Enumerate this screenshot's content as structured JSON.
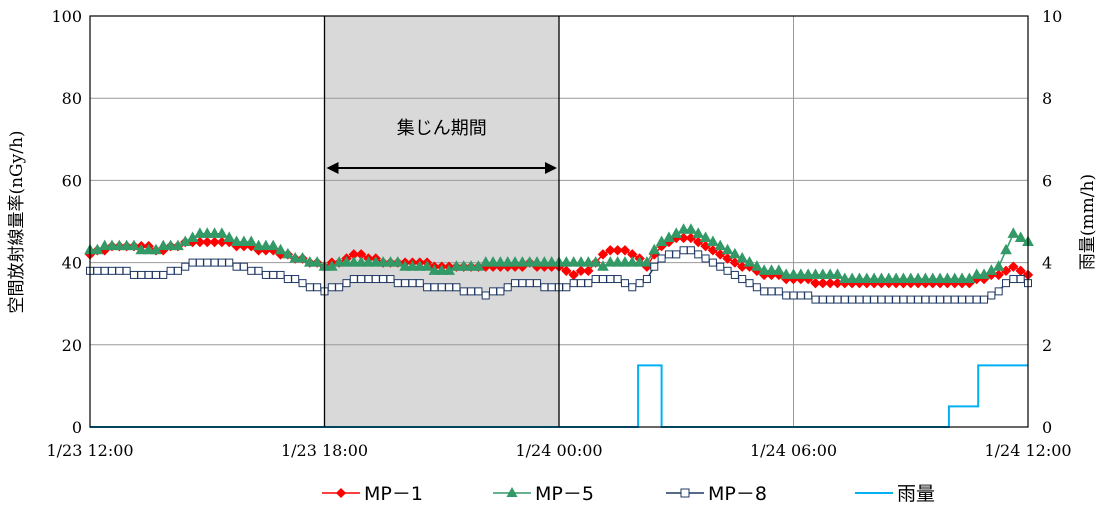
{
  "chart_data": {
    "type": "line",
    "ylabel_left": "空間放射線量率(nGy/h)",
    "ylabel_right": "雨量(mm/h)",
    "ylim_left": [
      0,
      100
    ],
    "ylim_right": [
      0,
      10
    ],
    "y_ticks_left": [
      "0",
      "20",
      "40",
      "60",
      "80",
      "100"
    ],
    "y_ticks_right": [
      "0",
      "2",
      "4",
      "6",
      "8",
      "10"
    ],
    "xlim_hours": [
      0,
      24
    ],
    "x_ticks": [
      {
        "h": 0,
        "date": "1/23",
        "time": "12:00"
      },
      {
        "h": 8,
        "date": "1/23",
        "time": "18:00"
      },
      {
        "h": 16,
        "date": "1/24",
        "time": "00:00"
      },
      {
        "h": 24,
        "date": "1/24",
        "time": "06:00"
      },
      {
        "h": 32,
        "date": "1/24",
        "time": "12:00"
      }
    ],
    "grid": true,
    "legend_position": "bottom",
    "shaded_period": {
      "label": "集じん期間",
      "start_h": 8,
      "end_h": 16,
      "color": "#d9d9d9"
    },
    "series": [
      {
        "name": "MP－1",
        "color": "#ff0000",
        "marker": "diamond",
        "axis": "left",
        "keypoints": [
          [
            0,
            42
          ],
          [
            1,
            44
          ],
          [
            2,
            43.5
          ],
          [
            2.5,
            43
          ],
          [
            3,
            44
          ],
          [
            3.5,
            45
          ],
          [
            4,
            45
          ],
          [
            4.5,
            45
          ],
          [
            5,
            44
          ],
          [
            6,
            43
          ],
          [
            7,
            41
          ],
          [
            7.5,
            40
          ],
          [
            8,
            39
          ],
          [
            8.5,
            40
          ],
          [
            9,
            42
          ],
          [
            10,
            40
          ],
          [
            11,
            40
          ],
          [
            12,
            39
          ],
          [
            13,
            39
          ],
          [
            14,
            39
          ],
          [
            15,
            39.5
          ],
          [
            16,
            39
          ],
          [
            16.5,
            37
          ],
          [
            17,
            38
          ],
          [
            17.5,
            42
          ],
          [
            18,
            43
          ],
          [
            18.5,
            42
          ],
          [
            19,
            39
          ],
          [
            19.5,
            44
          ],
          [
            20,
            46
          ],
          [
            20.5,
            46
          ],
          [
            21,
            44
          ],
          [
            22,
            40
          ],
          [
            23,
            37
          ],
          [
            24,
            36
          ],
          [
            25,
            35
          ],
          [
            26,
            35
          ],
          [
            27,
            35
          ],
          [
            28,
            35
          ],
          [
            29,
            35
          ],
          [
            30,
            35
          ],
          [
            31,
            37
          ],
          [
            31.5,
            39
          ],
          [
            32,
            37
          ]
        ]
      },
      {
        "name": "MP－5",
        "color": "#339966",
        "marker": "triangle",
        "axis": "left",
        "keypoints": [
          [
            0,
            43
          ],
          [
            1,
            44
          ],
          [
            2,
            43
          ],
          [
            3,
            44
          ],
          [
            3.5,
            46
          ],
          [
            4,
            47
          ],
          [
            4.5,
            47
          ],
          [
            5,
            45
          ],
          [
            6,
            44
          ],
          [
            6.5,
            43
          ],
          [
            7,
            41
          ],
          [
            7.5,
            40
          ],
          [
            8,
            39
          ],
          [
            9,
            40
          ],
          [
            10,
            40
          ],
          [
            11,
            39
          ],
          [
            12,
            38
          ],
          [
            13,
            39
          ],
          [
            14,
            40
          ],
          [
            15,
            40
          ],
          [
            16,
            40
          ],
          [
            17,
            40
          ],
          [
            17.5,
            39
          ],
          [
            18,
            40
          ],
          [
            18.5,
            40
          ],
          [
            19,
            40
          ],
          [
            19.5,
            45
          ],
          [
            20,
            47
          ],
          [
            20.5,
            48
          ],
          [
            21,
            46
          ],
          [
            22,
            42
          ],
          [
            23,
            38
          ],
          [
            24,
            37
          ],
          [
            25,
            37
          ],
          [
            26,
            36
          ],
          [
            27,
            36
          ],
          [
            28,
            36
          ],
          [
            29,
            36
          ],
          [
            30,
            36
          ],
          [
            30.5,
            37
          ],
          [
            31,
            39
          ],
          [
            31.5,
            47
          ],
          [
            32,
            45
          ]
        ]
      },
      {
        "name": "MP－8",
        "color": "#1f3864",
        "marker": "square",
        "axis": "left",
        "keypoints": [
          [
            0,
            38
          ],
          [
            1,
            38
          ],
          [
            1.5,
            37
          ],
          [
            2.5,
            37
          ],
          [
            3,
            38
          ],
          [
            3.5,
            40
          ],
          [
            4.5,
            40
          ],
          [
            5,
            39
          ],
          [
            5.5,
            38
          ],
          [
            6,
            37
          ],
          [
            7,
            36
          ],
          [
            7.5,
            34
          ],
          [
            8,
            33
          ],
          [
            8.5,
            34
          ],
          [
            9,
            36
          ],
          [
            10,
            36
          ],
          [
            10.5,
            35
          ],
          [
            11,
            35
          ],
          [
            11.5,
            34
          ],
          [
            12,
            34
          ],
          [
            13,
            33
          ],
          [
            13.5,
            32
          ],
          [
            14,
            33
          ],
          [
            14.5,
            35
          ],
          [
            15,
            35
          ],
          [
            15.5,
            34
          ],
          [
            16,
            34
          ],
          [
            17,
            35
          ],
          [
            17.5,
            36
          ],
          [
            18,
            36
          ],
          [
            18.5,
            34
          ],
          [
            19,
            36
          ],
          [
            19.5,
            41
          ],
          [
            20,
            42
          ],
          [
            20.5,
            43
          ],
          [
            21,
            41
          ],
          [
            22,
            37
          ],
          [
            23,
            33
          ],
          [
            24,
            32
          ],
          [
            25,
            31
          ],
          [
            26,
            31
          ],
          [
            27,
            31
          ],
          [
            28,
            31
          ],
          [
            29,
            31
          ],
          [
            30,
            31
          ],
          [
            30.5,
            31
          ],
          [
            31,
            33
          ],
          [
            31.5,
            36
          ],
          [
            32,
            35
          ]
        ]
      },
      {
        "name": "雨量",
        "color": "#00b0f0",
        "marker": "none",
        "axis": "right",
        "step_points": [
          [
            0,
            0
          ],
          [
            18.7,
            0
          ],
          [
            18.7,
            1.5
          ],
          [
            19.5,
            1.5
          ],
          [
            19.5,
            0
          ],
          [
            29.3,
            0
          ],
          [
            29.3,
            0.5
          ],
          [
            30.3,
            0.5
          ],
          [
            30.3,
            1.5
          ],
          [
            32,
            1.5
          ]
        ]
      }
    ]
  }
}
